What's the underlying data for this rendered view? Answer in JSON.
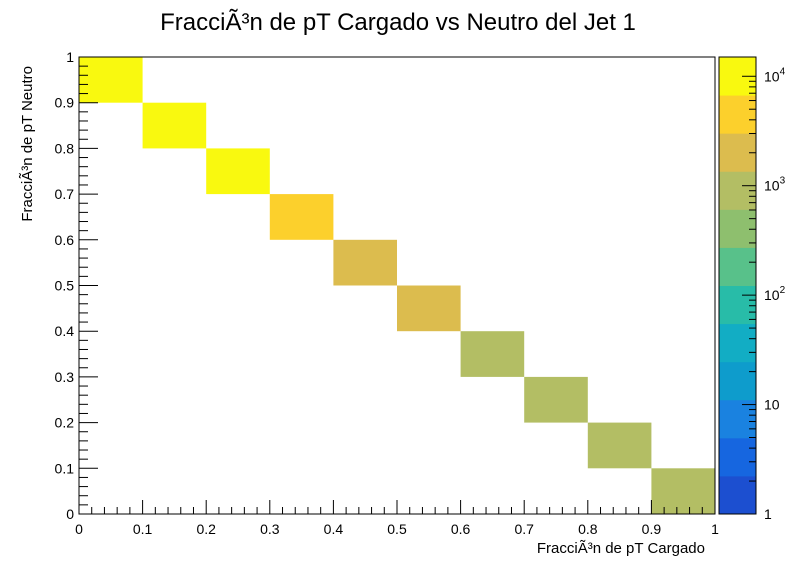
{
  "chart_data": {
    "type": "heatmap",
    "title": "FracciÃ³n de pT Cargado vs Neutro del Jet 1",
    "xlabel": "FracciÃ³n de pT Cargado",
    "ylabel": "FracciÃ³n de pT Neutro",
    "xlim": [
      0,
      1
    ],
    "ylim": [
      0,
      1
    ],
    "x_ticks": [
      "0",
      "0.1",
      "0.2",
      "0.3",
      "0.4",
      "0.5",
      "0.6",
      "0.7",
      "0.8",
      "0.9",
      "1"
    ],
    "y_ticks": [
      "0",
      "0.1",
      "0.2",
      "0.3",
      "0.4",
      "0.5",
      "0.6",
      "0.7",
      "0.8",
      "0.9",
      "1"
    ],
    "colorbar": {
      "scale": "log",
      "range": [
        1,
        15000
      ],
      "labels": [
        {
          "value": 1,
          "text": "1"
        },
        {
          "value": 10,
          "text": "10"
        },
        {
          "value": 100,
          "text": "10",
          "exp": "2"
        },
        {
          "value": 1000,
          "text": "10",
          "exp": "3"
        },
        {
          "value": 10000,
          "text": "10",
          "exp": "4"
        }
      ],
      "colors": [
        "#1c4fd0",
        "#1666e0",
        "#1a82e0",
        "#0e9ccc",
        "#12adc4",
        "#28bca8",
        "#58c18a",
        "#8ebf6e",
        "#b3be64",
        "#dcbc4e",
        "#fcd02c",
        "#f9f90f"
      ]
    },
    "cells": [
      {
        "x0": 0.0,
        "x1": 0.1,
        "y0": 0.9,
        "y1": 1.0,
        "color": "#f9f90f"
      },
      {
        "x0": 0.1,
        "x1": 0.2,
        "y0": 0.8,
        "y1": 0.9,
        "color": "#f9f90f"
      },
      {
        "x0": 0.2,
        "x1": 0.3,
        "y0": 0.7,
        "y1": 0.8,
        "color": "#f9f90f"
      },
      {
        "x0": 0.3,
        "x1": 0.4,
        "y0": 0.6,
        "y1": 0.7,
        "color": "#fcd02c"
      },
      {
        "x0": 0.4,
        "x1": 0.5,
        "y0": 0.5,
        "y1": 0.6,
        "color": "#dcbc4e"
      },
      {
        "x0": 0.5,
        "x1": 0.6,
        "y0": 0.4,
        "y1": 0.5,
        "color": "#dcbc4e"
      },
      {
        "x0": 0.6,
        "x1": 0.7,
        "y0": 0.3,
        "y1": 0.4,
        "color": "#b3be64"
      },
      {
        "x0": 0.7,
        "x1": 0.8,
        "y0": 0.2,
        "y1": 0.3,
        "color": "#b3be64"
      },
      {
        "x0": 0.8,
        "x1": 0.9,
        "y0": 0.1,
        "y1": 0.2,
        "color": "#b3be64"
      },
      {
        "x0": 0.9,
        "x1": 1.0,
        "y0": 0.0,
        "y1": 0.1,
        "color": "#b3be64"
      }
    ]
  }
}
